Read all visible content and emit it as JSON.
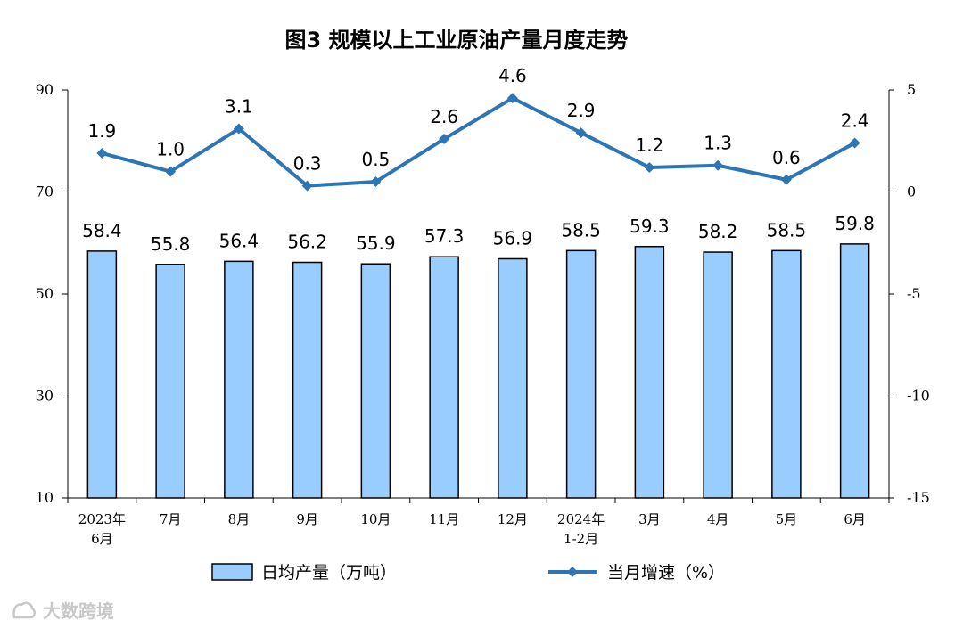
{
  "chart_data": {
    "type": "bar",
    "title": "图3  规模以上工业原油产量月度走势",
    "categories": [
      [
        "2023年",
        "6月"
      ],
      [
        "7月"
      ],
      [
        "8月"
      ],
      [
        "9月"
      ],
      [
        "10月"
      ],
      [
        "11月"
      ],
      [
        "12月"
      ],
      [
        "2024年",
        "1-2月"
      ],
      [
        "3月"
      ],
      [
        "4月"
      ],
      [
        "5月"
      ],
      [
        "6月"
      ]
    ],
    "left_axis": {
      "ylim": [
        10,
        90
      ],
      "ticks": [
        10,
        30,
        50,
        70,
        90
      ]
    },
    "right_axis": {
      "ylim": [
        -15,
        5
      ],
      "ticks": [
        -15,
        -10,
        -5,
        0,
        5
      ]
    },
    "series": [
      {
        "name": "日均产量（万吨）",
        "type": "bar",
        "axis": "left",
        "values": [
          58.4,
          55.8,
          56.4,
          56.2,
          55.9,
          57.3,
          56.9,
          58.5,
          59.3,
          58.2,
          58.5,
          59.8
        ],
        "labels": [
          "58.4",
          "55.8",
          "56.4",
          "56.2",
          "55.9",
          "57.3",
          "56.9",
          "58.5",
          "59.3",
          "58.2",
          "58.5",
          "59.8"
        ],
        "color": "#99CCFF"
      },
      {
        "name": "当月增速（%）",
        "type": "line",
        "axis": "right",
        "values": [
          1.9,
          1.0,
          3.1,
          0.3,
          0.5,
          2.6,
          4.6,
          2.9,
          1.2,
          1.3,
          0.6,
          2.4
        ],
        "labels": [
          "1.9",
          "1.0",
          "3.1",
          "0.3",
          "0.5",
          "2.6",
          "4.6",
          "2.9",
          "1.2",
          "1.3",
          "0.6",
          "2.4"
        ],
        "color": "#2E75B6"
      }
    ],
    "legend_position": "bottom",
    "grid": false
  },
  "watermark": {
    "text": "大数跨境"
  }
}
